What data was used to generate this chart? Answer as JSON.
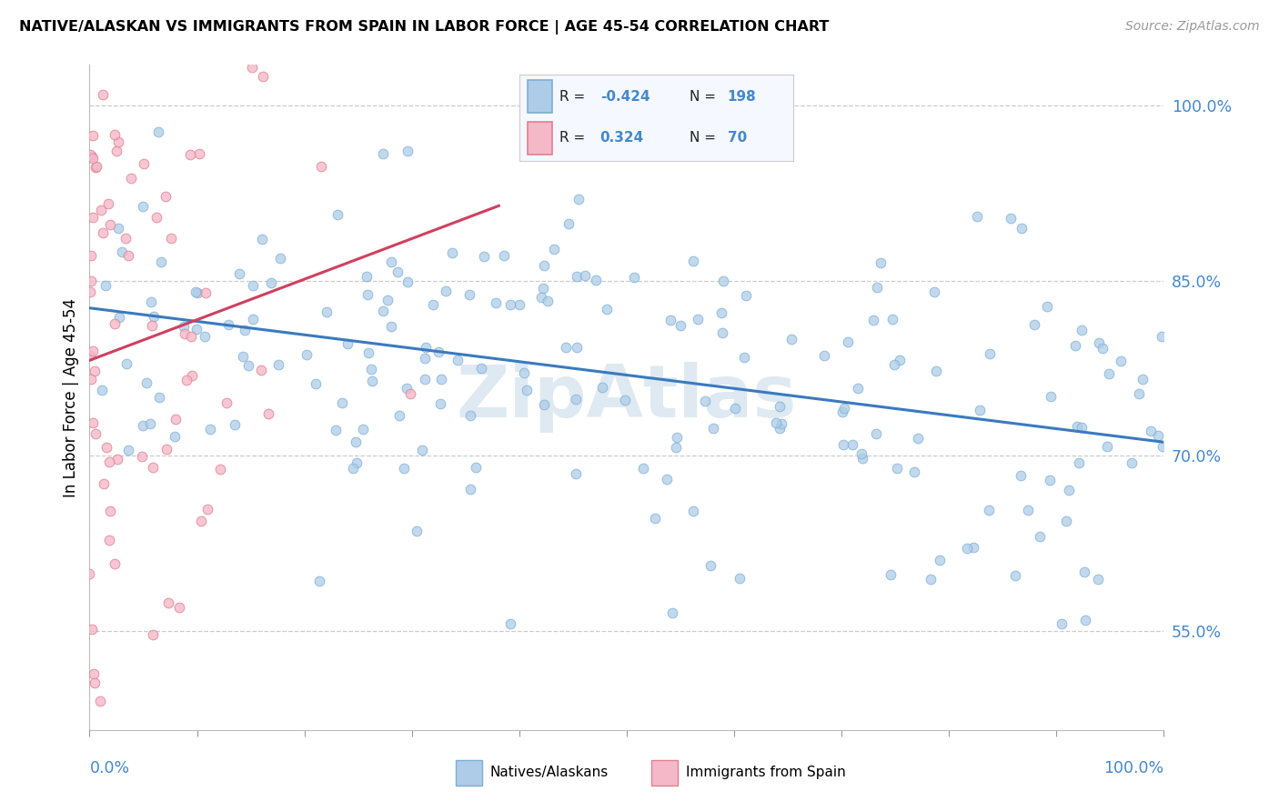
{
  "title": "NATIVE/ALASKAN VS IMMIGRANTS FROM SPAIN IN LABOR FORCE | AGE 45-54 CORRELATION CHART",
  "source": "Source: ZipAtlas.com",
  "ylabel": "In Labor Force | Age 45-54",
  "xmin": 0.0,
  "xmax": 1.0,
  "ymin": 0.465,
  "ymax": 1.035,
  "yticks_right": [
    0.55,
    0.7,
    0.85,
    1.0
  ],
  "ytick_labels_right": [
    "55.0%",
    "70.0%",
    "85.0%",
    "100.0%"
  ],
  "blue_R": -0.424,
  "blue_N": 198,
  "pink_R": 0.324,
  "pink_N": 70,
  "blue_color": "#aecce8",
  "pink_color": "#f5b8c8",
  "blue_edge": "#7aafd4",
  "pink_edge": "#e08090",
  "blue_line_color": "#3a7abf",
  "pink_line_color": "#d04060",
  "watermark": "ZipAtlas",
  "blue_seed": 77,
  "pink_seed": 99
}
